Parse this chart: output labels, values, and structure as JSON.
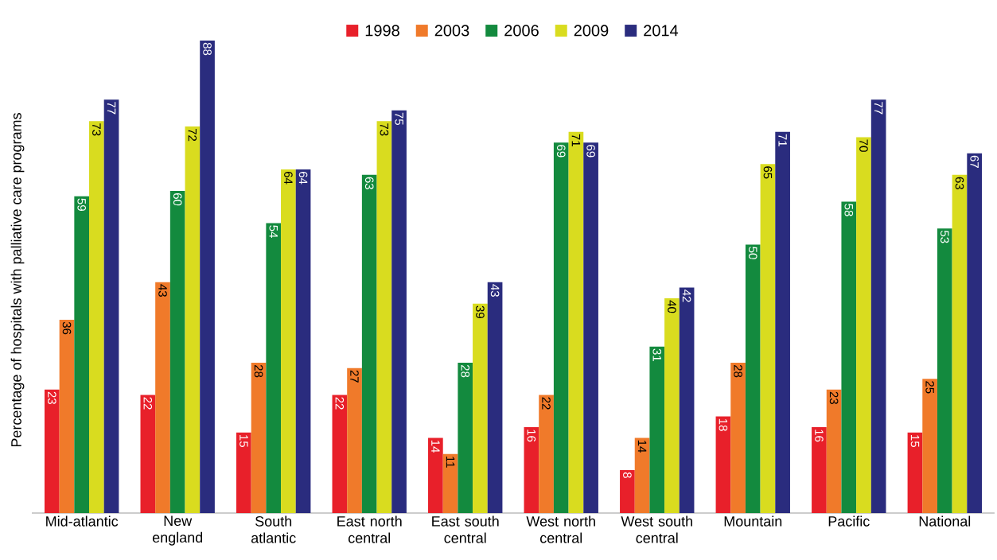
{
  "chart_data": {
    "type": "bar",
    "ylabel": "Percentage of hospitals with palliative care programs",
    "categories": [
      "Mid-atlantic",
      "New england",
      "South atlantic",
      "East north central",
      "East south central",
      "West north central",
      "West south central",
      "Mountain",
      "Pacific",
      "National"
    ],
    "series": [
      {
        "name": "1998",
        "color": "#e8202a",
        "values": [
          23,
          22,
          15,
          22,
          14,
          16,
          8,
          18,
          16,
          15
        ]
      },
      {
        "name": "2003",
        "color": "#f07a2a",
        "values": [
          36,
          43,
          28,
          27,
          11,
          22,
          14,
          28,
          23,
          25
        ]
      },
      {
        "name": "2006",
        "color": "#138a3e",
        "values": [
          59,
          60,
          54,
          63,
          28,
          69,
          31,
          50,
          58,
          53
        ]
      },
      {
        "name": "2009",
        "color": "#d9dc1f",
        "values": [
          73,
          72,
          64,
          73,
          39,
          71,
          40,
          65,
          70,
          63
        ]
      },
      {
        "name": "2014",
        "color": "#2a2c7e",
        "values": [
          77,
          88,
          64,
          75,
          43,
          69,
          42,
          71,
          77,
          67
        ]
      }
    ],
    "ylim": [
      0,
      88
    ],
    "data_labels": true,
    "legend": "top",
    "tick_labels": "x",
    "grid": false
  }
}
